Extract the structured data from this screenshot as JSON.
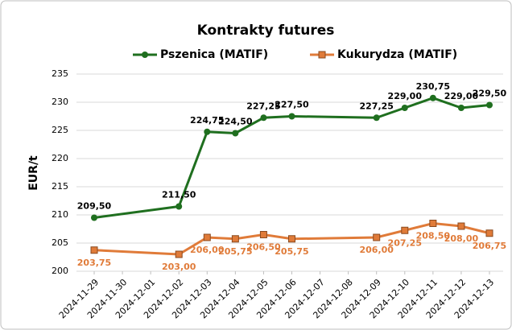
{
  "chart_data": {
    "type": "line",
    "title": "Kontrakty futures",
    "ylabel": "EUR/t",
    "x": [
      "2024-11-29",
      "2024-12-02",
      "2024-12-03",
      "2024-12-04",
      "2024-12-05",
      "2024-12-06",
      "2024-12-09",
      "2024-12-10",
      "2024-12-11",
      "2024-12-12",
      "2024-12-13"
    ],
    "xlim": [
      "2024-11-29",
      "2024-12-13"
    ],
    "xticks": [
      "2024-11-29",
      "2024-11-30",
      "2024-12-01",
      "2024-12-02",
      "2024-12-03",
      "2024-12-04",
      "2024-12-05",
      "2024-12-06",
      "2024-12-07",
      "2024-12-08",
      "2024-12-09",
      "2024-12-10",
      "2024-12-11",
      "2024-12-12",
      "2024-12-13"
    ],
    "ylim": [
      200,
      235
    ],
    "yticks": [
      200,
      205,
      210,
      215,
      220,
      225,
      230,
      235
    ],
    "grid": true,
    "legend": "top",
    "series": [
      {
        "name": "Pszenica (MATIF)",
        "color": "#1f6f1f",
        "marker": "circle",
        "values": [
          209.5,
          211.5,
          224.75,
          224.5,
          227.25,
          227.5,
          227.25,
          229.0,
          230.75,
          229.0,
          229.5
        ],
        "value_labels": [
          "209,50",
          "211,50",
          "224,75",
          "224,50",
          "227,25",
          "227,50",
          "227,25",
          "229,00",
          "230,75",
          "229,00",
          "229,50"
        ]
      },
      {
        "name": "Kukurydza (MATIF)",
        "color": "#e07b39",
        "marker": "square",
        "values": [
          203.75,
          203.0,
          206.0,
          205.75,
          206.5,
          205.75,
          206.0,
          207.25,
          208.5,
          208.0,
          206.75
        ],
        "value_labels": [
          "203,75",
          "203,00",
          "206,00",
          "205,75",
          "206,50",
          "205,75",
          "206,00",
          "207,25",
          "208,50",
          "208,00",
          "206,75"
        ]
      }
    ]
  }
}
